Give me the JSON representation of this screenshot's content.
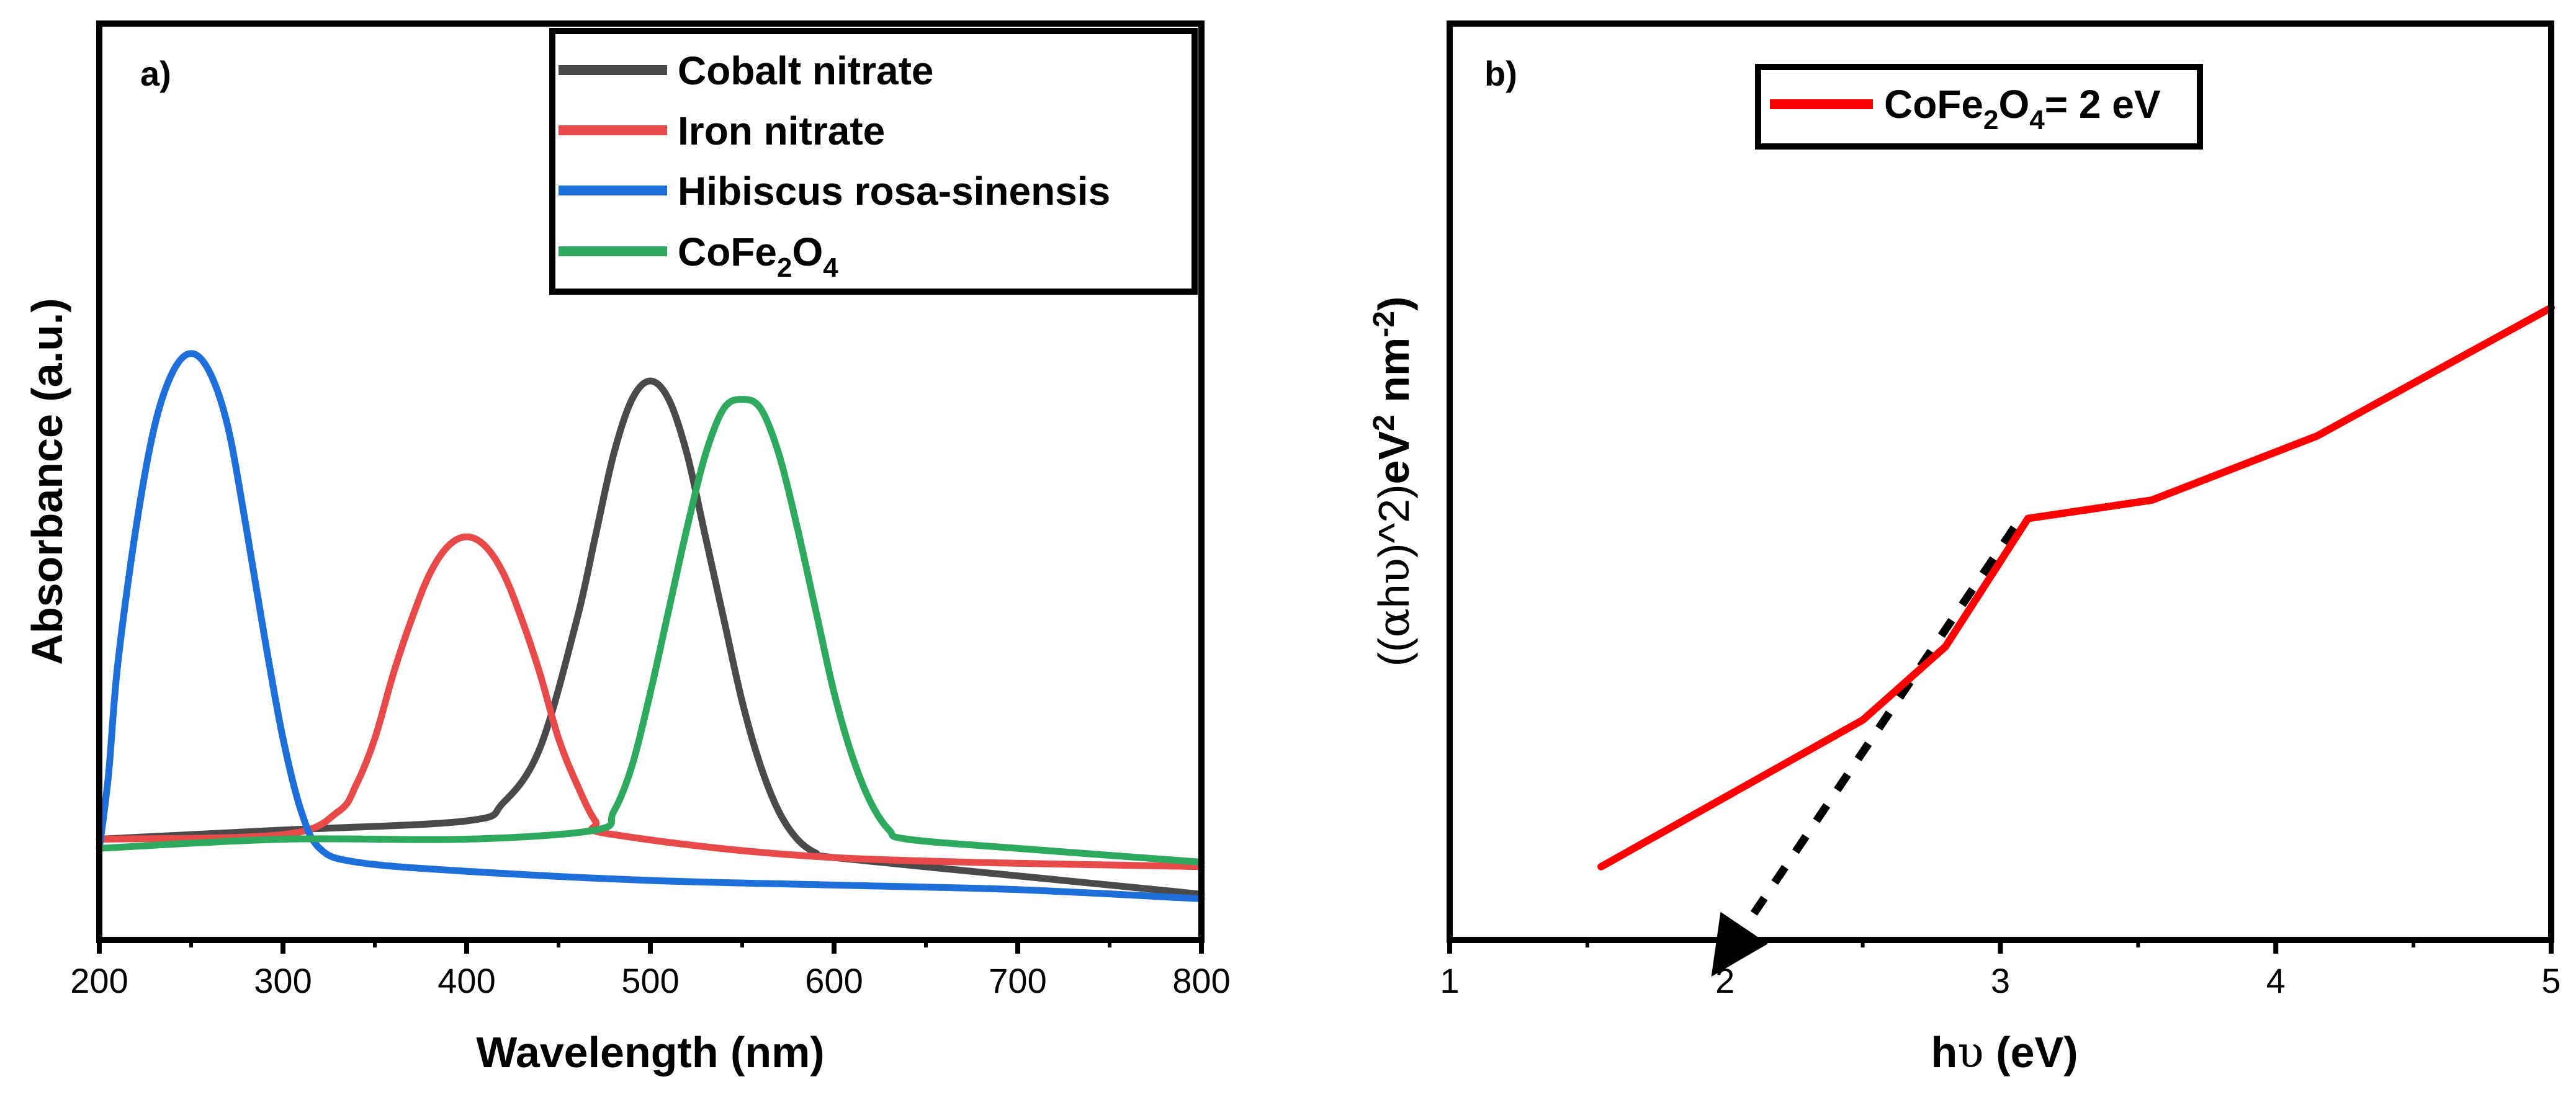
{
  "chart_data": [
    {
      "panel_label": "a)",
      "type": "line",
      "title": "",
      "xlabel": "Wavelength (nm)",
      "ylabel": "Absorbance (a.u.)",
      "xlim": [
        200,
        800
      ],
      "ylim": [
        0,
        1
      ],
      "xticks": [
        "200",
        "300",
        "400",
        "500",
        "600",
        "700",
        "800"
      ],
      "yticks": [],
      "grid": false,
      "legend_position": "top-right",
      "series": [
        {
          "name": "Cobalt nitrate",
          "color": "#4a4a4a",
          "x": [
            200,
            300,
            400,
            420,
            440,
            460,
            470,
            480,
            490,
            500,
            510,
            520,
            530,
            540,
            550,
            560,
            570,
            580,
            590,
            600,
            700,
            800
          ],
          "y": [
            0.11,
            0.12,
            0.13,
            0.15,
            0.21,
            0.35,
            0.44,
            0.53,
            0.59,
            0.61,
            0.59,
            0.53,
            0.44,
            0.35,
            0.26,
            0.19,
            0.14,
            0.11,
            0.095,
            0.09,
            0.07,
            0.05
          ]
        },
        {
          "name": "Iron nitrate",
          "color": "#e84a4a",
          "x": [
            200,
            300,
            330,
            340,
            350,
            360,
            370,
            380,
            390,
            400,
            410,
            420,
            430,
            440,
            450,
            460,
            470,
            480,
            600,
            800
          ],
          "y": [
            0.11,
            0.115,
            0.14,
            0.17,
            0.22,
            0.29,
            0.35,
            0.4,
            0.43,
            0.44,
            0.43,
            0.4,
            0.35,
            0.29,
            0.22,
            0.17,
            0.13,
            0.115,
            0.09,
            0.08
          ]
        },
        {
          "name": "Hibiscus rosa-sinensis",
          "color": "#1e6fd9",
          "x": [
            200,
            205,
            210,
            220,
            230,
            240,
            250,
            260,
            270,
            280,
            290,
            300,
            310,
            320,
            340,
            400,
            500,
            600,
            700,
            800
          ],
          "y": [
            0.1,
            0.18,
            0.3,
            0.45,
            0.56,
            0.62,
            0.64,
            0.62,
            0.56,
            0.45,
            0.33,
            0.22,
            0.14,
            0.1,
            0.085,
            0.075,
            0.065,
            0.06,
            0.055,
            0.045
          ]
        },
        {
          "name": "CoFe2O4",
          "color": "#2eaa5e",
          "x": [
            200,
            300,
            400,
            470,
            480,
            490,
            500,
            510,
            520,
            530,
            540,
            550,
            560,
            570,
            580,
            590,
            600,
            610,
            620,
            630,
            640,
            700,
            800
          ],
          "y": [
            0.1,
            0.11,
            0.11,
            0.12,
            0.14,
            0.19,
            0.27,
            0.36,
            0.45,
            0.53,
            0.58,
            0.59,
            0.58,
            0.53,
            0.45,
            0.36,
            0.27,
            0.2,
            0.15,
            0.12,
            0.11,
            0.1,
            0.085
          ]
        }
      ]
    },
    {
      "panel_label": "b)",
      "type": "line",
      "title": "",
      "xlabel": "hυ (eV)",
      "ylabel": "((αhυ)^2)eV² nm⁻²",
      "xlim": [
        1,
        5
      ],
      "ylim": [
        0,
        1
      ],
      "xticks": [
        "1",
        "2",
        "3",
        "4",
        "5"
      ],
      "yticks": [],
      "grid": false,
      "legend_position": "top-left",
      "series": [
        {
          "name": "CoFe2O4= 2 eV",
          "color": "#ff0000",
          "x": [
            1.55,
            2.5,
            2.8,
            3.1,
            3.55,
            4.15,
            5.0
          ],
          "y": [
            0.08,
            0.24,
            0.32,
            0.46,
            0.48,
            0.55,
            0.69
          ]
        }
      ],
      "annotations": [
        {
          "type": "tangent-extrapolation",
          "style": "dashed-arrow",
          "from": {
            "x": 3.05,
            "y": 0.45
          },
          "to": {
            "x": 1.95,
            "y": -0.04
          },
          "band_gap_ev": 2
        }
      ]
    }
  ]
}
